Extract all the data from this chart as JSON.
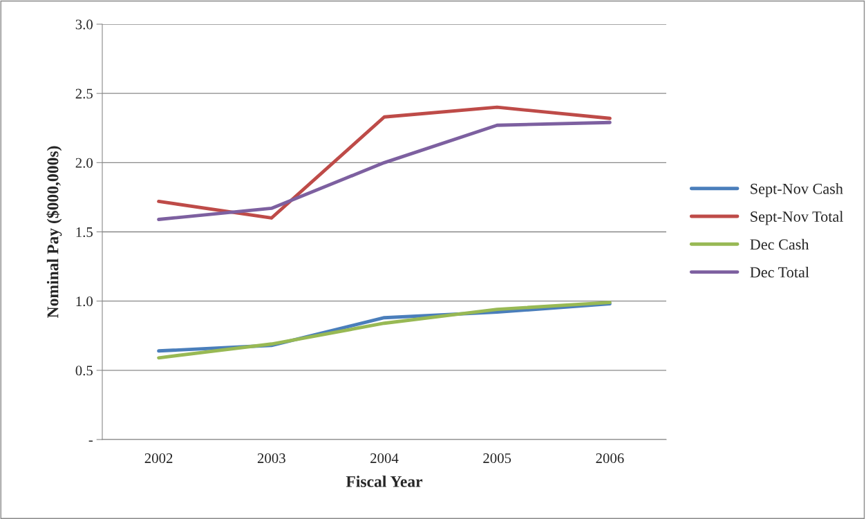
{
  "chart_data": {
    "type": "line",
    "xlabel": "Fiscal Year",
    "ylabel": "Nominal Pay ($000,000s)",
    "categories": [
      "2002",
      "2003",
      "2004",
      "2005",
      "2006"
    ],
    "series": [
      {
        "name": "Sept-Nov Cash",
        "color": "#4a7ebb",
        "values": [
          0.64,
          0.68,
          0.88,
          0.92,
          0.98
        ]
      },
      {
        "name": "Sept-Nov Total",
        "color": "#be4b48",
        "values": [
          1.72,
          1.6,
          2.33,
          2.4,
          2.32
        ]
      },
      {
        "name": "Dec Cash",
        "color": "#98b954",
        "values": [
          0.59,
          0.69,
          0.84,
          0.94,
          0.99
        ]
      },
      {
        "name": "Dec Total",
        "color": "#7d60a0",
        "values": [
          1.59,
          1.67,
          2.0,
          2.27,
          2.29
        ]
      }
    ],
    "ylim": [
      0,
      3.0
    ],
    "yticks": [
      {
        "value": 0,
        "label": "-"
      },
      {
        "value": 0.5,
        "label": "0.5"
      },
      {
        "value": 1.0,
        "label": "1.0"
      },
      {
        "value": 1.5,
        "label": "1.5"
      },
      {
        "value": 2.0,
        "label": "2.0"
      },
      {
        "value": 2.5,
        "label": "2.5"
      },
      {
        "value": 3.0,
        "label": "3.0"
      }
    ],
    "grid": "y",
    "legend": "right",
    "marker": "none",
    "line_style": "solid"
  }
}
